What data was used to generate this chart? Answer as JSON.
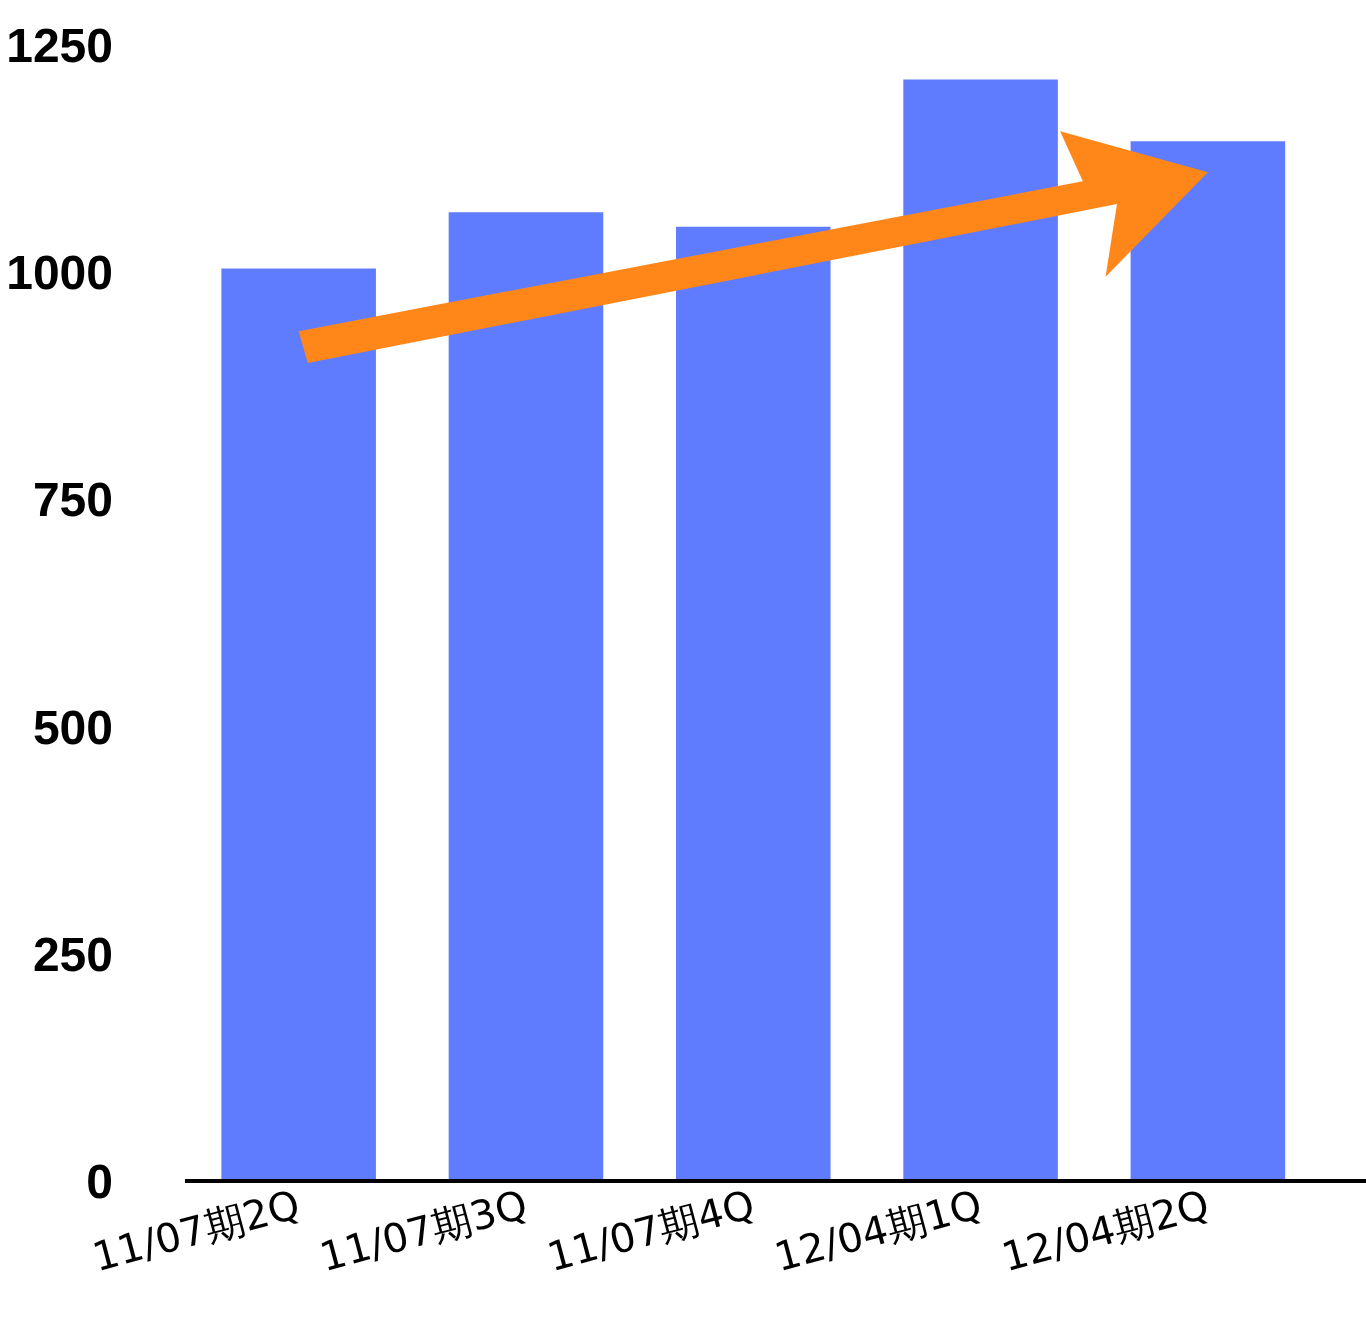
{
  "chart_data": {
    "type": "bar",
    "categories": [
      "11/07期2Q",
      "11/07期3Q",
      "11/07期4Q",
      "12/04期1Q",
      "12/04期2Q"
    ],
    "values": [
      1004,
      1066,
      1050,
      1212,
      1144
    ],
    "color": "#5f7cff",
    "ylim": [
      0,
      1250
    ],
    "yticks": [
      0,
      250,
      500,
      750,
      1000,
      1250
    ],
    "grid": false
  }
}
